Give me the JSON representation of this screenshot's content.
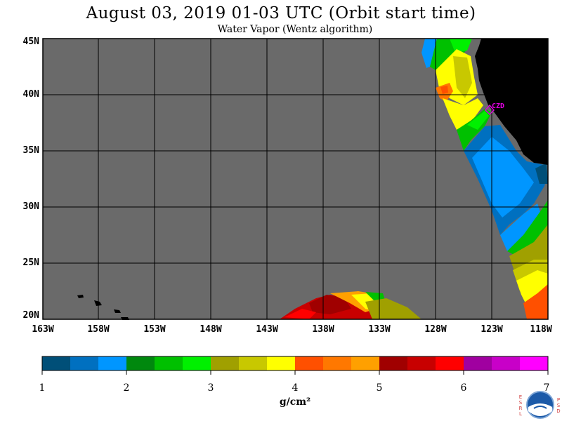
{
  "header": {
    "title": "August 03, 2019  01-03 UTC  (Orbit start time)",
    "subtitle": "Water Vapor (Wentz algorithm)"
  },
  "map": {
    "lat_labels": [
      "45N",
      "40N",
      "35N",
      "30N",
      "25N",
      "20N"
    ],
    "lon_labels": [
      "163W",
      "158W",
      "153W",
      "148W",
      "143W",
      "138W",
      "133W",
      "128W",
      "123W",
      "118W"
    ],
    "station_label": "CZD",
    "station_color": "#e000e0",
    "no_data_color": "#6a6a6a",
    "land_color": "#000000"
  },
  "colorbar": {
    "colors": [
      "#004f78",
      "#0070c0",
      "#0096ff",
      "#00880e",
      "#00c000",
      "#00f000",
      "#a0a000",
      "#c8c800",
      "#ffff00",
      "#ff5000",
      "#ff7800",
      "#ffa000",
      "#a00000",
      "#c80000",
      "#ff0000",
      "#a000a0",
      "#c800c8",
      "#ff00ff"
    ],
    "tick_labels": [
      "1",
      "2",
      "3",
      "4",
      "5",
      "6",
      "7"
    ],
    "units": "g/cm²"
  },
  "logo": {
    "left_letters": [
      "E",
      "S",
      "R",
      "L"
    ],
    "right_letters": [
      "P",
      "S",
      "D"
    ]
  }
}
